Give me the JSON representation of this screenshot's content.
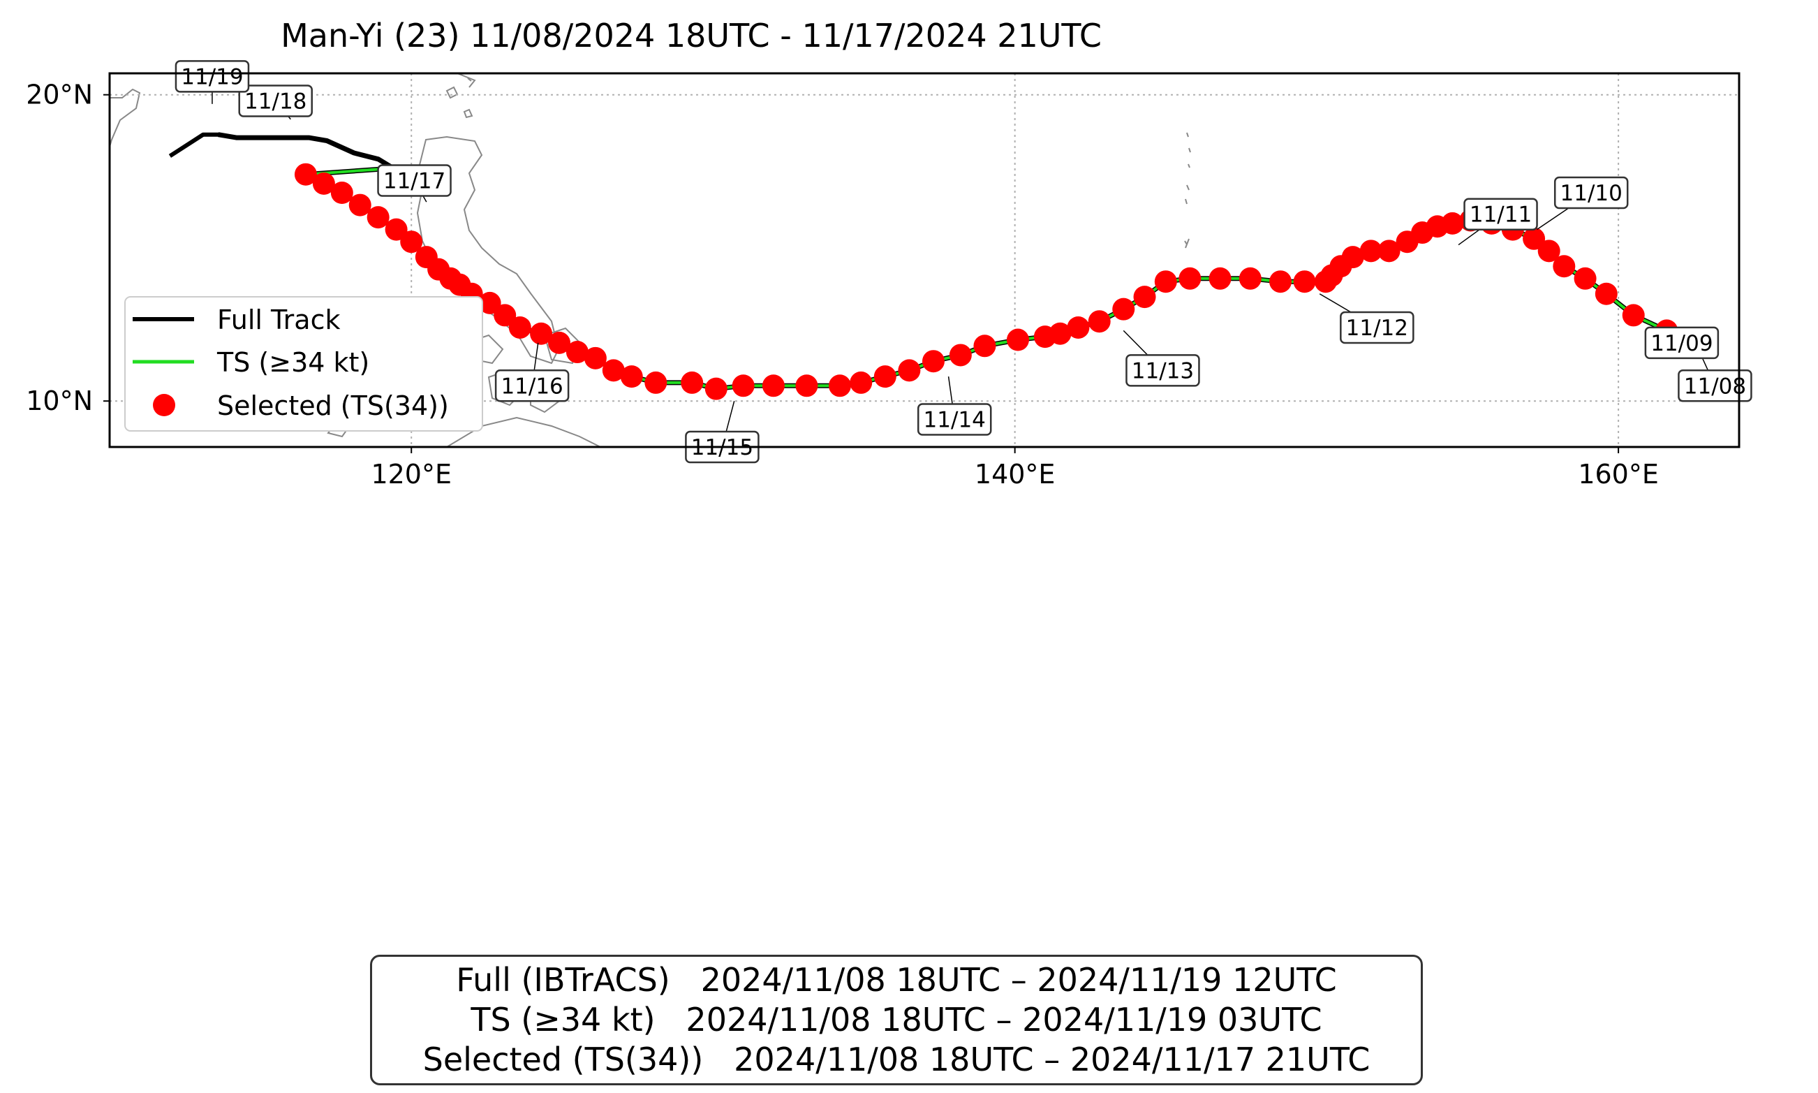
{
  "title": "Man-Yi (23)   11/08/2024 18UTC - 11/17/2024 21UTC",
  "map": {
    "lon_range": [
      110,
      164
    ],
    "lat_range": [
      8.5,
      20.7
    ],
    "x_ticks": [
      {
        "value": 120,
        "label": "120°E"
      },
      {
        "value": 140,
        "label": "140°E"
      },
      {
        "value": 160,
        "label": "160°E"
      }
    ],
    "y_ticks": [
      {
        "value": 10,
        "label": "10°N"
      },
      {
        "value": 20,
        "label": "20°N"
      }
    ],
    "grid": true
  },
  "legend": {
    "full": "Full Track",
    "ts": "TS (≥34 kt)",
    "selected": "Selected (TS(34))",
    "placement": "lower-left"
  },
  "colors": {
    "full": "#000000",
    "ts": "#22dd22",
    "selected": "#ff0000",
    "coast": "#888888",
    "grid": "#b0b0b0"
  },
  "chart_data": {
    "type": "scatter",
    "full_track": [
      [
        112,
        18.0
      ],
      [
        113.1,
        18.7
      ],
      [
        113.6,
        18.7
      ],
      [
        114.2,
        18.6
      ],
      [
        115.5,
        18.6
      ],
      [
        116.6,
        18.6
      ],
      [
        117.2,
        18.5
      ],
      [
        118.1,
        18.1
      ],
      [
        118.9,
        17.9
      ],
      [
        119.4,
        17.6
      ],
      [
        120.1,
        17.0
      ]
    ],
    "ts_track": [
      [
        113.6,
        18.7
      ],
      [
        114.2,
        18.6
      ],
      [
        115.5,
        18.6
      ],
      [
        116.6,
        18.6
      ],
      [
        117.2,
        18.5
      ],
      [
        118.1,
        18.1
      ],
      [
        118.9,
        17.9
      ],
      [
        119.4,
        17.6
      ]
    ],
    "selected_points": [
      [
        162.6,
        11.9
      ],
      [
        161.6,
        12.3
      ],
      [
        160.5,
        12.8
      ],
      [
        159.6,
        13.5
      ],
      [
        158.9,
        14.0
      ],
      [
        158.2,
        14.4
      ],
      [
        157.7,
        14.9
      ],
      [
        157.2,
        15.3
      ],
      [
        156.5,
        15.6
      ],
      [
        155.8,
        15.8
      ],
      [
        155.1,
        15.9
      ],
      [
        154.5,
        15.8
      ],
      [
        154.0,
        15.7
      ],
      [
        153.5,
        15.5
      ],
      [
        153.0,
        15.2
      ],
      [
        152.4,
        14.9
      ],
      [
        151.8,
        14.9
      ],
      [
        151.2,
        14.7
      ],
      [
        150.8,
        14.4
      ],
      [
        150.5,
        14.1
      ],
      [
        150.3,
        13.9
      ],
      [
        149.6,
        13.9
      ],
      [
        148.8,
        13.9
      ],
      [
        147.8,
        14.0
      ],
      [
        146.8,
        14.0
      ],
      [
        145.8,
        14.0
      ],
      [
        145.0,
        13.9
      ],
      [
        144.3,
        13.4
      ],
      [
        143.6,
        13.0
      ],
      [
        142.8,
        12.6
      ],
      [
        142.1,
        12.4
      ],
      [
        141.5,
        12.2
      ],
      [
        141.0,
        12.1
      ],
      [
        140.1,
        12.0
      ],
      [
        139.0,
        11.8
      ],
      [
        138.2,
        11.5
      ],
      [
        137.3,
        11.3
      ],
      [
        136.5,
        11.0
      ],
      [
        135.7,
        10.8
      ],
      [
        134.9,
        10.6
      ],
      [
        134.2,
        10.5
      ],
      [
        133.1,
        10.5
      ],
      [
        132.0,
        10.5
      ],
      [
        131.0,
        10.5
      ],
      [
        130.1,
        10.4
      ],
      [
        129.3,
        10.6
      ],
      [
        128.1,
        10.6
      ],
      [
        127.3,
        10.8
      ],
      [
        126.7,
        11.0
      ],
      [
        126.1,
        11.4
      ],
      [
        125.5,
        11.6
      ],
      [
        124.9,
        11.9
      ],
      [
        124.3,
        12.2
      ],
      [
        123.6,
        12.4
      ],
      [
        123.1,
        12.8
      ],
      [
        122.6,
        13.2
      ],
      [
        122.0,
        13.5
      ],
      [
        121.6,
        13.8
      ],
      [
        121.3,
        14.0
      ],
      [
        120.9,
        14.3
      ],
      [
        120.5,
        14.7
      ],
      [
        120.0,
        15.2
      ],
      [
        119.5,
        15.6
      ],
      [
        118.9,
        16.0
      ],
      [
        118.3,
        16.4
      ],
      [
        117.7,
        16.8
      ],
      [
        117.1,
        17.1
      ],
      [
        116.5,
        17.4
      ]
    ],
    "date_labels": [
      {
        "text": "11/08",
        "lon": 163.2,
        "lat": 10.5,
        "anchor_lon": 162.6,
        "anchor_lat": 11.8
      },
      {
        "text": "11/09",
        "lon": 162.1,
        "lat": 11.9,
        "anchor_lon": 161.6,
        "anchor_lat": 12.3
      },
      {
        "text": "11/10",
        "lon": 159.1,
        "lat": 16.8,
        "anchor_lon": 157.3,
        "anchor_lat": 15.6
      },
      {
        "text": "11/11",
        "lon": 156.1,
        "lat": 16.1,
        "anchor_lon": 154.7,
        "anchor_lat": 15.1
      },
      {
        "text": "11/12",
        "lon": 152.0,
        "lat": 12.4,
        "anchor_lon": 150.1,
        "anchor_lat": 13.5
      },
      {
        "text": "11/13",
        "lon": 144.9,
        "lat": 11.0,
        "anchor_lon": 143.6,
        "anchor_lat": 12.3
      },
      {
        "text": "11/14",
        "lon": 138.0,
        "lat": 9.4,
        "anchor_lon": 137.8,
        "anchor_lat": 10.8
      },
      {
        "text": "11/15",
        "lon": 130.3,
        "lat": 8.5,
        "anchor_lon": 130.7,
        "anchor_lat": 10.0
      },
      {
        "text": "11/16",
        "lon": 124.0,
        "lat": 10.5,
        "anchor_lon": 124.2,
        "anchor_lat": 11.9
      },
      {
        "text": "11/17",
        "lon": 120.1,
        "lat": 17.2,
        "anchor_lon": 120.5,
        "anchor_lat": 16.5
      },
      {
        "text": "11/18",
        "lon": 115.5,
        "lat": 19.8,
        "anchor_lon": 116.0,
        "anchor_lat": 19.2
      },
      {
        "text": "11/19",
        "lon": 113.4,
        "lat": 20.6,
        "anchor_lon": 113.4,
        "anchor_lat": 19.7
      }
    ]
  },
  "info": {
    "full": "Full (IBTrACS)   2024/11/08 18UTC – 2024/11/19 12UTC",
    "ts": "TS (≥34 kt)   2024/11/08 18UTC – 2024/11/19 03UTC",
    "selected": "Selected (TS(34))   2024/11/08 18UTC – 2024/11/17 21UTC"
  }
}
